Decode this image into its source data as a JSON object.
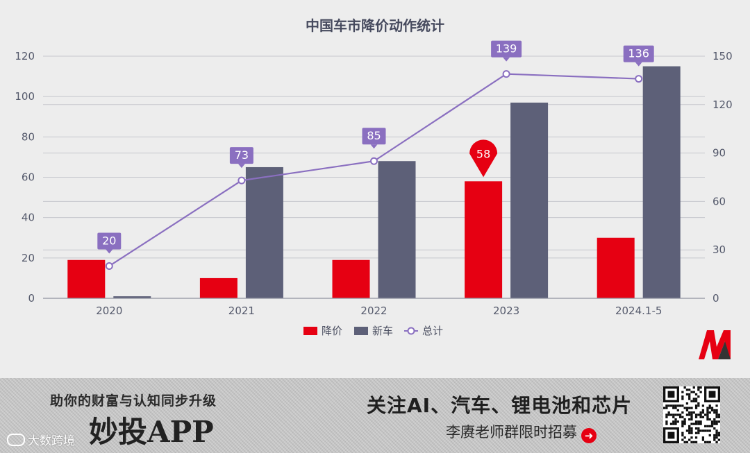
{
  "chart_data": {
    "type": "bar",
    "title": "中国车市降价动作统计",
    "categories": [
      "2020",
      "2021",
      "2022",
      "2023",
      "2024.1-5"
    ],
    "series": [
      {
        "name": "降价",
        "type": "bar",
        "axis": "left",
        "color": "#e60012",
        "values": [
          19,
          10,
          19,
          58,
          30
        ]
      },
      {
        "name": "新车",
        "type": "bar",
        "axis": "left",
        "color": "#5d6078",
        "values": [
          1,
          65,
          68,
          97,
          115
        ]
      },
      {
        "name": "总计",
        "type": "line",
        "axis": "right",
        "color": "#8a6fc0",
        "values": [
          20,
          73,
          85,
          139,
          136
        ]
      }
    ],
    "left_axis": {
      "min": 0,
      "max": 120,
      "ticks": [
        0,
        20,
        40,
        60,
        80,
        100,
        120
      ]
    },
    "right_axis": {
      "min": 0,
      "max": 150,
      "ticks": [
        0,
        30,
        60,
        90,
        120,
        150
      ]
    },
    "highlight": {
      "series": "降价",
      "category": "2023",
      "label": "58"
    },
    "data_labels": [
      "20",
      "73",
      "85",
      "139",
      "136"
    ],
    "legend_position": "bottom",
    "grid": true
  },
  "banner": {
    "tagline": "助你的财富与认知同步升级",
    "app_name": "妙投APP",
    "headline": "关注AI、汽车、锂电池和芯片",
    "subline": "李赓老师群限时招募",
    "watermark": "大数跨境",
    "arrow_icon": "arrow-right-circle-icon",
    "qr_icon": "qr-code-icon"
  }
}
